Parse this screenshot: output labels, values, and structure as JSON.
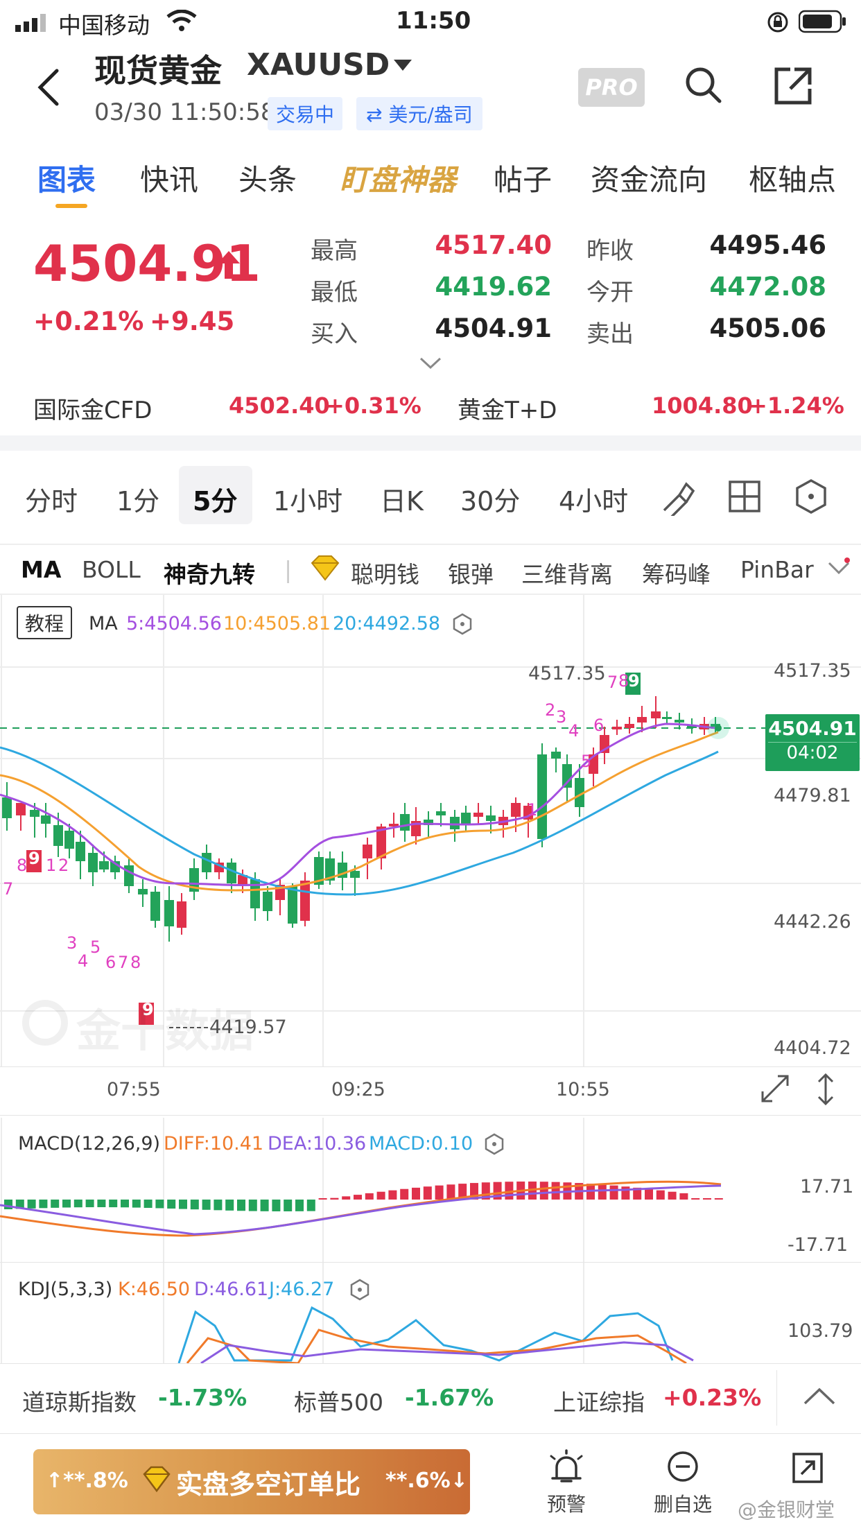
{
  "status_bar": {
    "carrier": "中国移动",
    "time": "11:50"
  },
  "header": {
    "title": "现货黄金",
    "symbol": "XAUUSD",
    "datetime": "03/30 11:50:58",
    "trading_badge": "交易中",
    "unit_badge": "⇄ 美元/盎司",
    "pro_label": "PRO"
  },
  "tabs": [
    "图表",
    "快讯",
    "头条",
    "盯盘神器",
    "帖子",
    "资金流向",
    "枢轴点"
  ],
  "quote": {
    "price": "4504.91",
    "change_pct": "+0.21%",
    "change_abs": "+9.45",
    "stats": [
      {
        "label": "最高",
        "value": "4517.40",
        "color": "red"
      },
      {
        "label": "昨收",
        "value": "4495.46",
        "color": "dark"
      },
      {
        "label": "最低",
        "value": "4419.62",
        "color": "green"
      },
      {
        "label": "今开",
        "value": "4472.08",
        "color": "green"
      },
      {
        "label": "买入",
        "value": "4504.91",
        "color": "dark"
      },
      {
        "label": "卖出",
        "value": "4505.06",
        "color": "dark"
      }
    ]
  },
  "related": [
    {
      "name": "国际金CFD",
      "price": "4502.40",
      "change": "+0.31%"
    },
    {
      "name": "黄金T+D",
      "price": "1004.80",
      "change": "+1.24%"
    }
  ],
  "periods": [
    "分时",
    "1分",
    "5分",
    "1小时",
    "日K",
    "30分",
    "4小时"
  ],
  "selected_period": "5分",
  "indicators": [
    "MA",
    "BOLL",
    "神奇九转",
    "聪明钱",
    "银弹",
    "三维背离",
    "筹码峰",
    "PinBar"
  ],
  "chart": {
    "tutorial_label": "教程",
    "ma_label": "MA",
    "ma5": "5:4504.56",
    "ma10": "10:4505.81",
    "ma20": "20:4492.58",
    "y_ticks": [
      "4517.35",
      "4479.81",
      "4442.26",
      "4404.72"
    ],
    "high_label": "4517.35",
    "low_label": "4419.57",
    "current_price": "4504.91",
    "countdown": "04:02",
    "x_ticks": [
      "07:55",
      "09:25",
      "10:55"
    ],
    "watermark": "金十数据",
    "colors": {
      "up": "#e0314b",
      "down": "#23a35a",
      "ma5": "#a44fe0",
      "ma10": "#f5a030",
      "ma20": "#2ea8e0"
    }
  },
  "macd": {
    "label": "MACD(12,26,9)",
    "diff": "DIFF:10.41",
    "dea": "DEA:10.36",
    "macd": "MACD:0.10",
    "y_top": "17.71",
    "y_bottom": "-17.71"
  },
  "kdj": {
    "label": "KDJ(5,3,3)",
    "k": "K:46.50",
    "d": "D:46.61",
    "j": "J:46.27",
    "y_top": "103.79"
  },
  "indices": [
    {
      "name": "道琼斯指数",
      "change": "-1.73%"
    },
    {
      "name": "标普500",
      "change": "-1.67%"
    },
    {
      "name": "上证综指",
      "change": "+0.23%"
    }
  ],
  "footer": {
    "left_pct": "↑**.8%",
    "center_label": "实盘多空订单比",
    "right_pct": "**.6%↓",
    "alert_label": "预警",
    "remove_label": "删自选",
    "weibo_watermark": "@金银财堂"
  }
}
